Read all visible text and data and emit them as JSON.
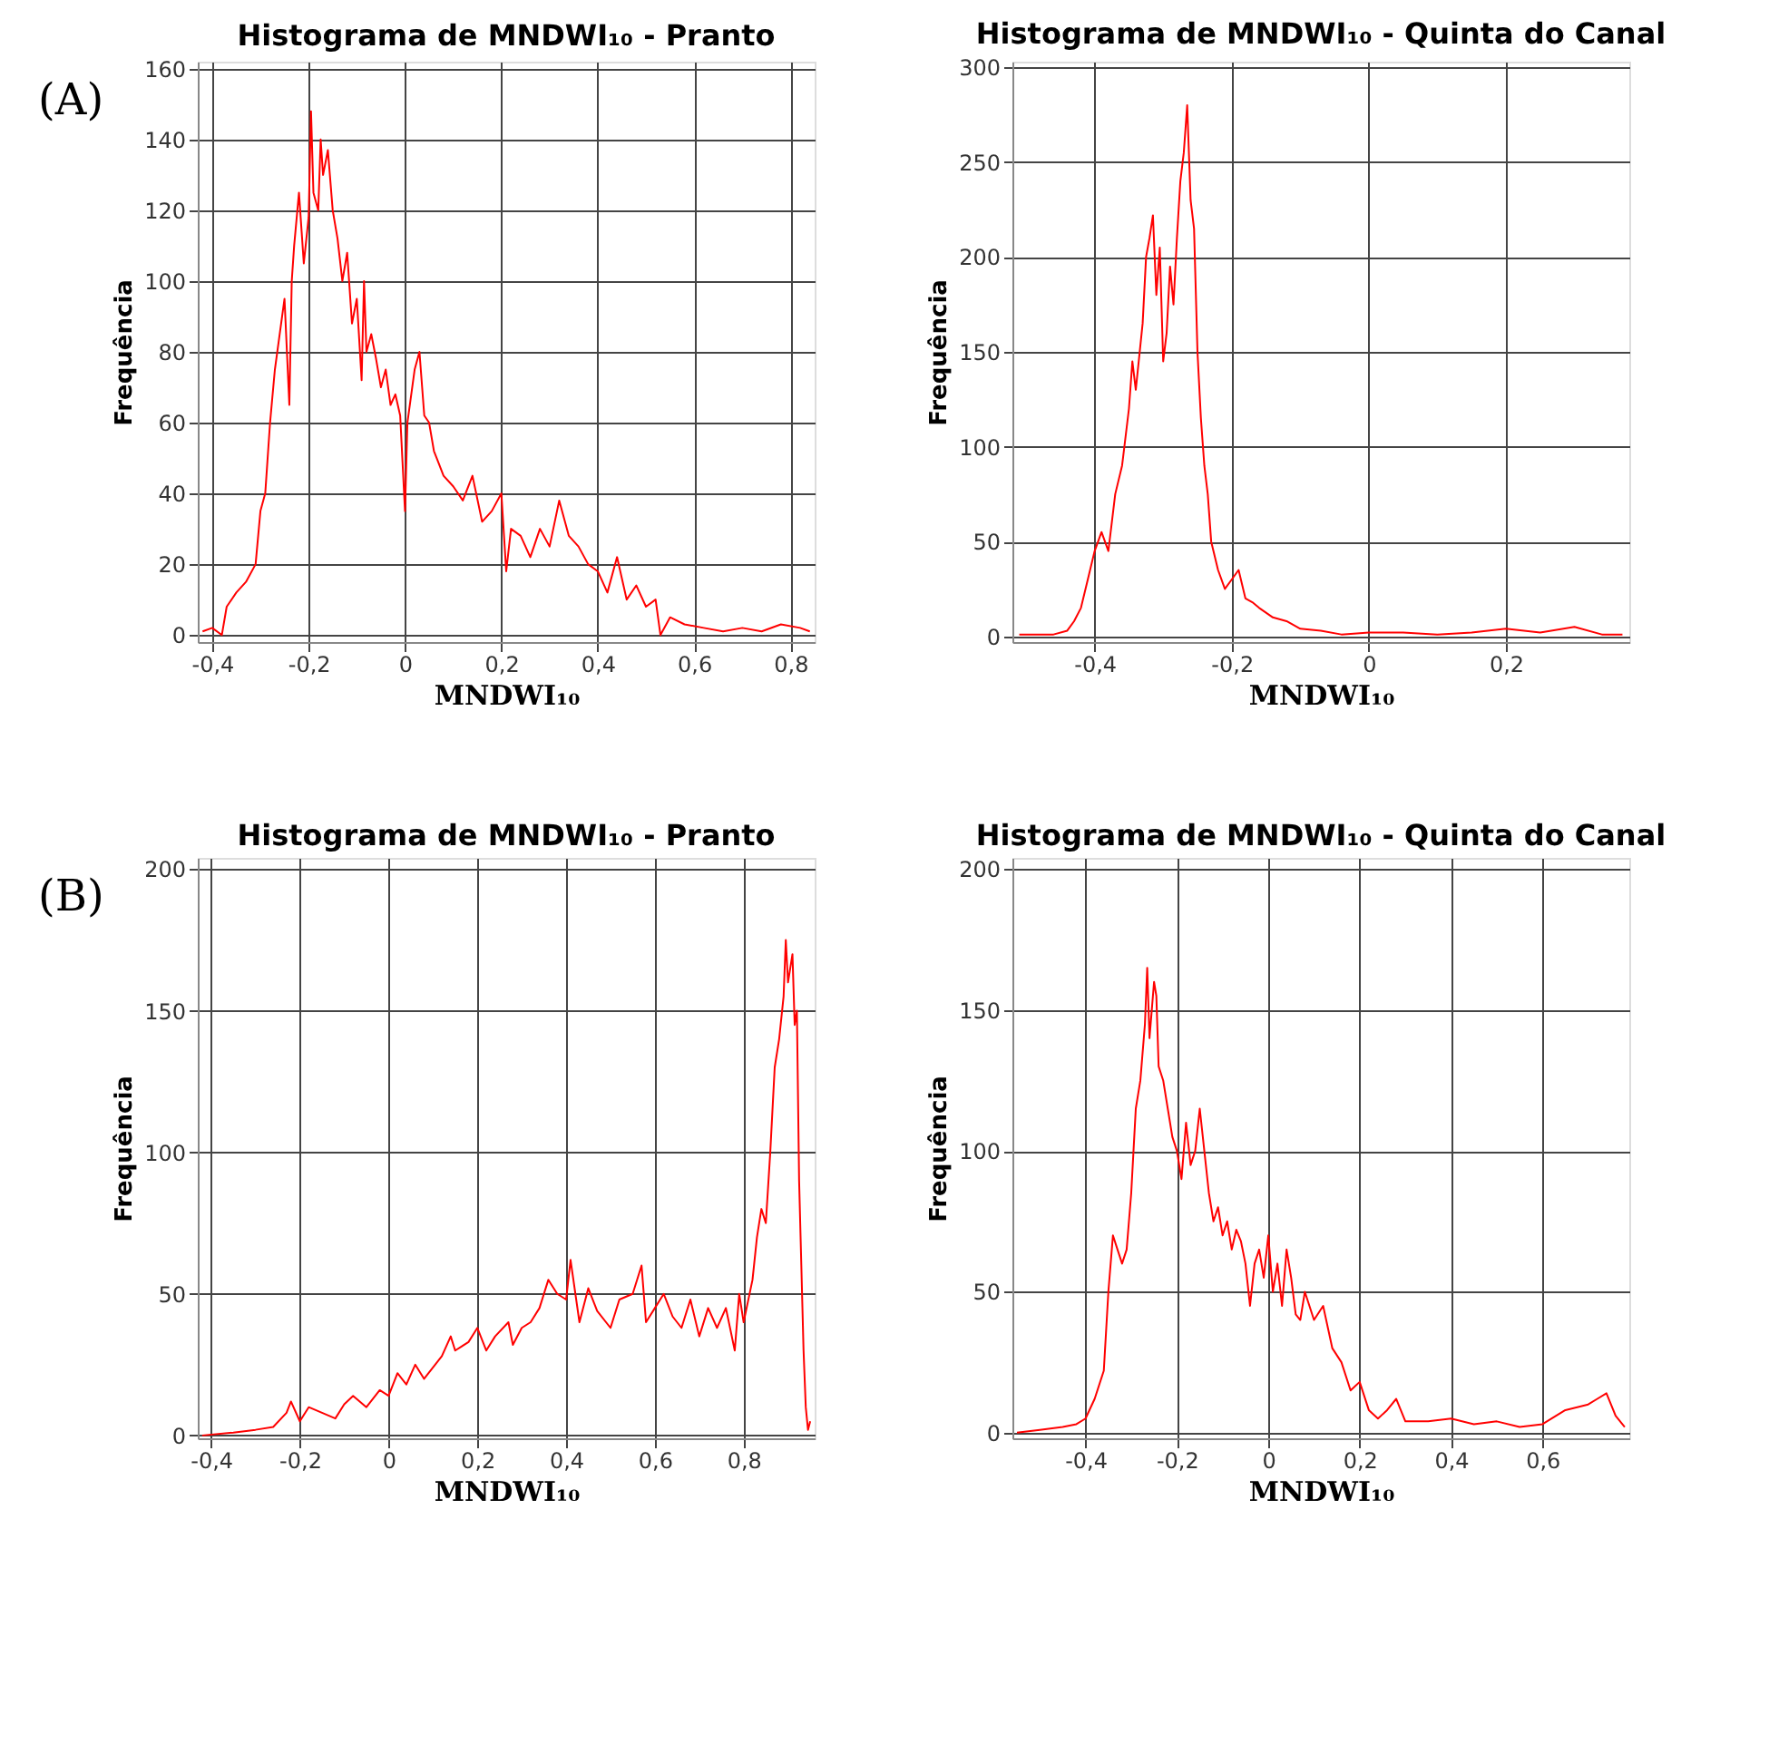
{
  "chart_data": [
    {
      "type": "line",
      "title": "Histograma de MNDWI₁₀ - Pranto",
      "xlabel": "MNDWI₁₀",
      "ylabel": "Frequência",
      "annotations": [
        "(A)"
      ],
      "grid": true,
      "xlim": [
        -0.43,
        0.85
      ],
      "xticks": [
        {
          "value": -0.4,
          "label": "-0,4"
        },
        {
          "value": -0.2,
          "label": "-0,2"
        },
        0,
        {
          "value": 0.2,
          "label": "0,2"
        },
        {
          "value": 0.4,
          "label": "0,4"
        },
        {
          "value": 0.6,
          "label": "0,6"
        },
        {
          "value": 0.8,
          "label": "0,8"
        }
      ],
      "ylim": [
        -2,
        162
      ],
      "yticks": [
        0,
        20,
        40,
        60,
        80,
        100,
        120,
        140,
        160
      ],
      "x": [
        -0.42,
        -0.4,
        -0.38,
        -0.37,
        -0.35,
        -0.33,
        -0.31,
        -0.3,
        -0.29,
        -0.28,
        -0.27,
        -0.26,
        -0.25,
        -0.24,
        -0.235,
        -0.23,
        -0.22,
        -0.21,
        -0.2,
        -0.195,
        -0.19,
        -0.18,
        -0.175,
        -0.17,
        -0.16,
        -0.15,
        -0.14,
        -0.13,
        -0.12,
        -0.11,
        -0.1,
        -0.09,
        -0.085,
        -0.08,
        -0.07,
        -0.06,
        -0.05,
        -0.04,
        -0.03,
        -0.02,
        -0.01,
        0,
        0.005,
        0.02,
        0.03,
        0.04,
        0.05,
        0.06,
        0.08,
        0.1,
        0.12,
        0.14,
        0.16,
        0.18,
        0.2,
        0.21,
        0.22,
        0.24,
        0.26,
        0.28,
        0.3,
        0.32,
        0.34,
        0.36,
        0.38,
        0.4,
        0.42,
        0.44,
        0.46,
        0.48,
        0.5,
        0.52,
        0.53,
        0.55,
        0.58,
        0.62,
        0.66,
        0.7,
        0.74,
        0.78,
        0.82,
        0.84
      ],
      "series": [
        {
          "color": "#ff0000",
          "values": [
            1,
            2,
            0,
            8,
            12,
            15,
            20,
            35,
            40,
            60,
            75,
            85,
            95,
            65,
            100,
            110,
            125,
            105,
            118,
            148,
            125,
            120,
            140,
            130,
            137,
            120,
            112,
            100,
            108,
            88,
            95,
            72,
            100,
            80,
            85,
            78,
            70,
            75,
            65,
            68,
            62,
            35,
            60,
            75,
            80,
            62,
            60,
            52,
            45,
            42,
            38,
            45,
            32,
            35,
            40,
            18,
            30,
            28,
            22,
            30,
            25,
            38,
            28,
            25,
            20,
            18,
            12,
            22,
            10,
            14,
            8,
            10,
            0,
            5,
            3,
            2,
            1,
            2,
            1,
            3,
            2,
            1
          ]
        }
      ]
    },
    {
      "type": "line",
      "title": "Histograma de MNDWI₁₀ - Quinta do Canal",
      "xlabel": "MNDWI₁₀",
      "ylabel": "Frequência",
      "grid": true,
      "xlim": [
        -0.52,
        0.38
      ],
      "xticks": [
        {
          "value": -0.4,
          "label": "-0,4"
        },
        {
          "value": -0.2,
          "label": "-0,2"
        },
        0,
        {
          "value": 0.2,
          "label": "0,2"
        }
      ],
      "ylim": [
        -3,
        303
      ],
      "yticks": [
        0,
        50,
        100,
        150,
        200,
        250,
        300
      ],
      "x": [
        -0.51,
        -0.46,
        -0.44,
        -0.43,
        -0.42,
        -0.41,
        -0.4,
        -0.39,
        -0.38,
        -0.37,
        -0.36,
        -0.35,
        -0.345,
        -0.34,
        -0.33,
        -0.325,
        -0.32,
        -0.315,
        -0.31,
        -0.305,
        -0.3,
        -0.295,
        -0.29,
        -0.285,
        -0.28,
        -0.275,
        -0.27,
        -0.265,
        -0.26,
        -0.255,
        -0.25,
        -0.245,
        -0.24,
        -0.235,
        -0.23,
        -0.22,
        -0.21,
        -0.2,
        -0.19,
        -0.18,
        -0.17,
        -0.16,
        -0.14,
        -0.12,
        -0.1,
        -0.07,
        -0.04,
        0,
        0.05,
        0.1,
        0.15,
        0.2,
        0.25,
        0.3,
        0.34,
        0.37
      ],
      "series": [
        {
          "color": "#ff0000",
          "values": [
            1,
            1,
            3,
            8,
            15,
            30,
            45,
            55,
            45,
            75,
            90,
            120,
            145,
            130,
            165,
            200,
            210,
            222,
            180,
            205,
            145,
            160,
            195,
            175,
            210,
            240,
            255,
            280,
            230,
            215,
            150,
            115,
            90,
            75,
            50,
            35,
            25,
            30,
            35,
            20,
            18,
            15,
            10,
            8,
            4,
            3,
            1,
            2,
            2,
            1,
            2,
            4,
            2,
            5,
            1,
            1
          ]
        }
      ]
    },
    {
      "type": "line",
      "title": "Histograma de MNDWI₁₀ - Pranto",
      "xlabel": "MNDWI₁₀",
      "ylabel": "Frequência",
      "annotations": [
        "(B)"
      ],
      "grid": true,
      "xlim": [
        -0.43,
        0.96
      ],
      "xticks": [
        {
          "value": -0.4,
          "label": "-0,4"
        },
        {
          "value": -0.2,
          "label": "-0,2"
        },
        0,
        {
          "value": 0.2,
          "label": "0,2"
        },
        {
          "value": 0.4,
          "label": "0,4"
        },
        {
          "value": 0.6,
          "label": "0,6"
        },
        {
          "value": 0.8,
          "label": "0,8"
        }
      ],
      "ylim": [
        -1,
        204
      ],
      "yticks": [
        0,
        50,
        100,
        150,
        200
      ],
      "x": [
        -0.42,
        -0.35,
        -0.3,
        -0.26,
        -0.23,
        -0.22,
        -0.2,
        -0.18,
        -0.15,
        -0.12,
        -0.1,
        -0.08,
        -0.05,
        -0.02,
        0,
        0.02,
        0.04,
        0.06,
        0.08,
        0.1,
        0.12,
        0.14,
        0.15,
        0.18,
        0.2,
        0.22,
        0.24,
        0.27,
        0.28,
        0.3,
        0.32,
        0.34,
        0.36,
        0.38,
        0.4,
        0.41,
        0.43,
        0.45,
        0.47,
        0.5,
        0.52,
        0.55,
        0.57,
        0.58,
        0.6,
        0.62,
        0.64,
        0.66,
        0.68,
        0.7,
        0.72,
        0.74,
        0.76,
        0.78,
        0.79,
        0.8,
        0.82,
        0.83,
        0.84,
        0.85,
        0.86,
        0.87,
        0.88,
        0.89,
        0.895,
        0.9,
        0.91,
        0.915,
        0.92,
        0.925,
        0.93,
        0.935,
        0.94,
        0.945,
        0.95
      ],
      "series": [
        {
          "color": "#ff0000",
          "values": [
            0,
            1,
            2,
            3,
            8,
            12,
            5,
            10,
            8,
            6,
            11,
            14,
            10,
            16,
            14,
            22,
            18,
            25,
            20,
            24,
            28,
            35,
            30,
            33,
            38,
            30,
            35,
            40,
            32,
            38,
            40,
            45,
            55,
            50,
            48,
            62,
            40,
            52,
            44,
            38,
            48,
            50,
            60,
            40,
            45,
            50,
            42,
            38,
            48,
            35,
            45,
            38,
            45,
            30,
            50,
            40,
            55,
            70,
            80,
            75,
            100,
            130,
            140,
            155,
            175,
            160,
            170,
            145,
            150,
            90,
            60,
            30,
            10,
            2,
            5
          ]
        }
      ]
    },
    {
      "type": "line",
      "title": "Histograma de MNDWI₁₀ - Quinta do Canal",
      "xlabel": "MNDWI₁₀",
      "ylabel": "Frequência",
      "grid": true,
      "xlim": [
        -0.56,
        0.79
      ],
      "xticks": [
        {
          "value": -0.4,
          "label": "-0,4"
        },
        {
          "value": -0.2,
          "label": "-0,2"
        },
        0,
        {
          "value": 0.2,
          "label": "0,2"
        },
        {
          "value": 0.4,
          "label": "0,4"
        },
        {
          "value": 0.6,
          "label": "0,6"
        }
      ],
      "ylim": [
        -2,
        204
      ],
      "yticks": [
        0,
        50,
        100,
        150,
        200
      ],
      "x": [
        -0.55,
        -0.5,
        -0.45,
        -0.42,
        -0.4,
        -0.38,
        -0.36,
        -0.35,
        -0.34,
        -0.33,
        -0.32,
        -0.31,
        -0.3,
        -0.29,
        -0.28,
        -0.27,
        -0.265,
        -0.26,
        -0.25,
        -0.245,
        -0.24,
        -0.23,
        -0.22,
        -0.21,
        -0.2,
        -0.19,
        -0.18,
        -0.17,
        -0.16,
        -0.15,
        -0.14,
        -0.13,
        -0.12,
        -0.11,
        -0.1,
        -0.09,
        -0.08,
        -0.07,
        -0.06,
        -0.05,
        -0.04,
        -0.03,
        -0.02,
        -0.01,
        0,
        0.01,
        0.02,
        0.03,
        0.04,
        0.05,
        0.06,
        0.07,
        0.08,
        0.1,
        0.12,
        0.14,
        0.16,
        0.18,
        0.2,
        0.22,
        0.24,
        0.26,
        0.28,
        0.3,
        0.35,
        0.4,
        0.45,
        0.5,
        0.55,
        0.6,
        0.65,
        0.7,
        0.72,
        0.74,
        0.76,
        0.78
      ],
      "series": [
        {
          "color": "#ff0000",
          "values": [
            0,
            1,
            2,
            3,
            5,
            12,
            22,
            50,
            70,
            65,
            60,
            65,
            85,
            115,
            125,
            145,
            165,
            140,
            160,
            155,
            130,
            125,
            115,
            105,
            100,
            90,
            110,
            95,
            100,
            115,
            100,
            85,
            75,
            80,
            70,
            75,
            65,
            72,
            68,
            60,
            45,
            60,
            65,
            55,
            70,
            50,
            60,
            45,
            65,
            55,
            42,
            40,
            50,
            40,
            45,
            30,
            25,
            15,
            18,
            8,
            5,
            8,
            12,
            4,
            4,
            5,
            3,
            4,
            2,
            3,
            8,
            10,
            12,
            14,
            6,
            2
          ]
        }
      ]
    }
  ]
}
